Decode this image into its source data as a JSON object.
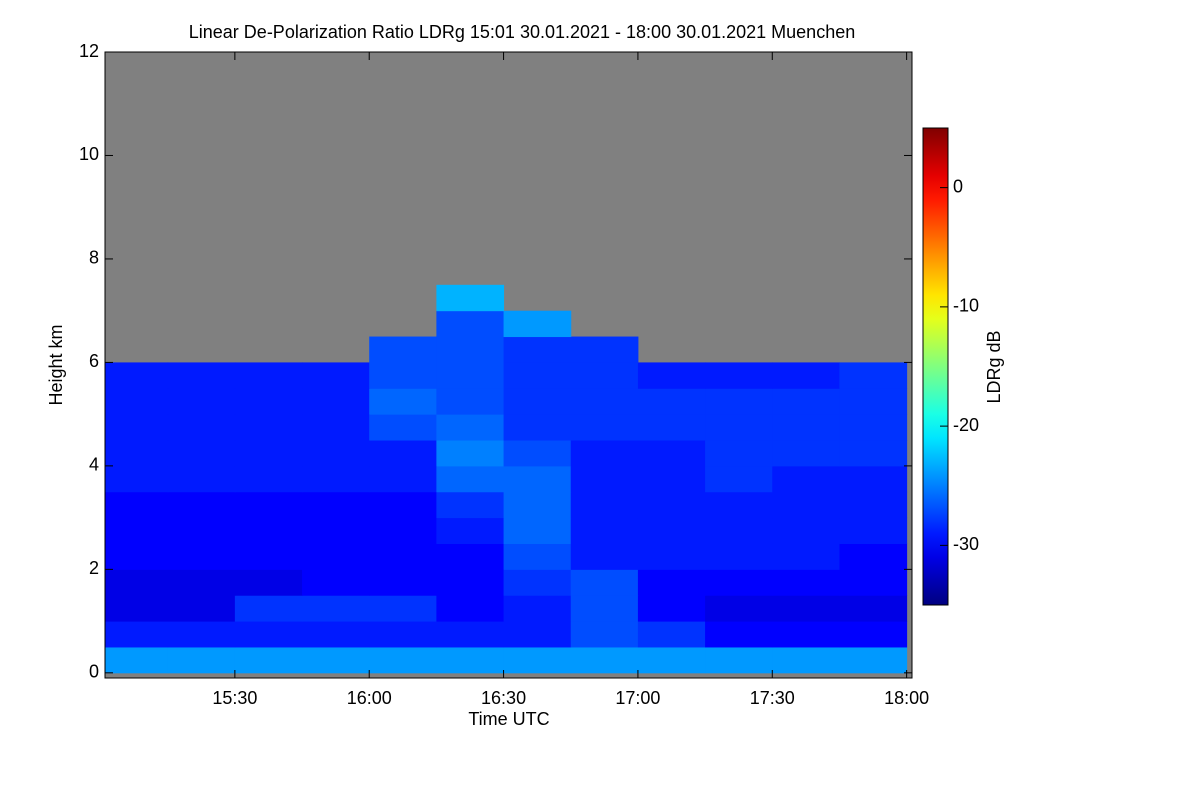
{
  "chart_data": {
    "type": "heatmap",
    "title": "Linear De-Polarization Ratio LDRg   15:01 30.01.2021 - 18:00 30.01.2021 Muenchen",
    "x_label": "Time UTC",
    "y_label": "Height km",
    "colorbar_label": "LDRg dB",
    "colormap": "jet",
    "missing_color": "#808080",
    "xlim": [
      15.0167,
      18.02
    ],
    "xticks": [
      {
        "value": 15.5,
        "label": "15:30"
      },
      {
        "value": 16.0,
        "label": "16:00"
      },
      {
        "value": 16.5,
        "label": "16:30"
      },
      {
        "value": 17.0,
        "label": "17:00"
      },
      {
        "value": 17.5,
        "label": "17:30"
      },
      {
        "value": 18.0,
        "label": "18:00"
      }
    ],
    "ylim": [
      -0.1,
      12
    ],
    "yticks": [
      0,
      2,
      4,
      6,
      8,
      10,
      12
    ],
    "zlim": [
      -35,
      5
    ],
    "zticks": [
      -30,
      -20,
      -10,
      0
    ],
    "xbins": [
      15.0,
      15.25,
      15.5,
      15.75,
      16.0,
      16.25,
      16.5,
      16.75,
      17.0,
      17.25,
      17.5,
      17.75,
      18.0
    ],
    "ybins": [
      0,
      0.5,
      1,
      1.5,
      2,
      2.5,
      3,
      3.5,
      4,
      4.5,
      5,
      5.5,
      6,
      6.5,
      7,
      7.5
    ],
    "z": [
      [
        -24,
        -24,
        -24,
        -24,
        -24,
        -24,
        -24,
        -24,
        -24,
        -24,
        -24,
        -24
      ],
      [
        -29,
        -29,
        -29,
        -29,
        -29,
        -29,
        -29,
        -27,
        -28,
        -30,
        -30,
        -30
      ],
      [
        -31,
        -31,
        -28,
        -28,
        -28,
        -30,
        -29,
        -27,
        -30,
        -31,
        -31,
        -31
      ],
      [
        -31,
        -31,
        -31,
        -30,
        -30,
        -30,
        -28,
        -27,
        -30,
        -30,
        -30,
        -30
      ],
      [
        -30,
        -30,
        -30,
        -30,
        -30,
        -30,
        -27,
        -29,
        -29,
        -29,
        -29,
        -30
      ],
      [
        -30,
        -30,
        -30,
        -30,
        -30,
        -29,
        -26,
        -29,
        -29,
        -29,
        -29,
        -29
      ],
      [
        -30,
        -30,
        -30,
        -30,
        -30,
        -28,
        -26,
        -29,
        -29,
        -29,
        -29,
        -29
      ],
      [
        -29,
        -29,
        -29,
        -29,
        -29,
        -26,
        -26,
        -29,
        -29,
        -28,
        -29,
        -29
      ],
      [
        -29,
        -29,
        -29,
        -29,
        -29,
        -25,
        -27,
        -29,
        -29,
        -28,
        -28,
        -28
      ],
      [
        -29,
        -29,
        -29,
        -29,
        -27,
        -26,
        -28,
        -28,
        -28,
        -28,
        -28,
        -28
      ],
      [
        -29,
        -29,
        -29,
        -29,
        -26,
        -27,
        -28,
        -28,
        -28,
        -28,
        -28,
        -28
      ],
      [
        -29,
        -29,
        -29,
        -29,
        -27,
        -27,
        -28,
        -28,
        -29,
        -29,
        -29,
        -28
      ],
      [
        null,
        null,
        null,
        null,
        -27,
        -27,
        -28,
        -28,
        null,
        null,
        null,
        null
      ],
      [
        null,
        null,
        null,
        null,
        null,
        -27,
        -24,
        null,
        null,
        null,
        null,
        null
      ],
      [
        null,
        null,
        null,
        null,
        null,
        -23,
        null,
        null,
        null,
        null,
        null,
        null
      ]
    ]
  }
}
